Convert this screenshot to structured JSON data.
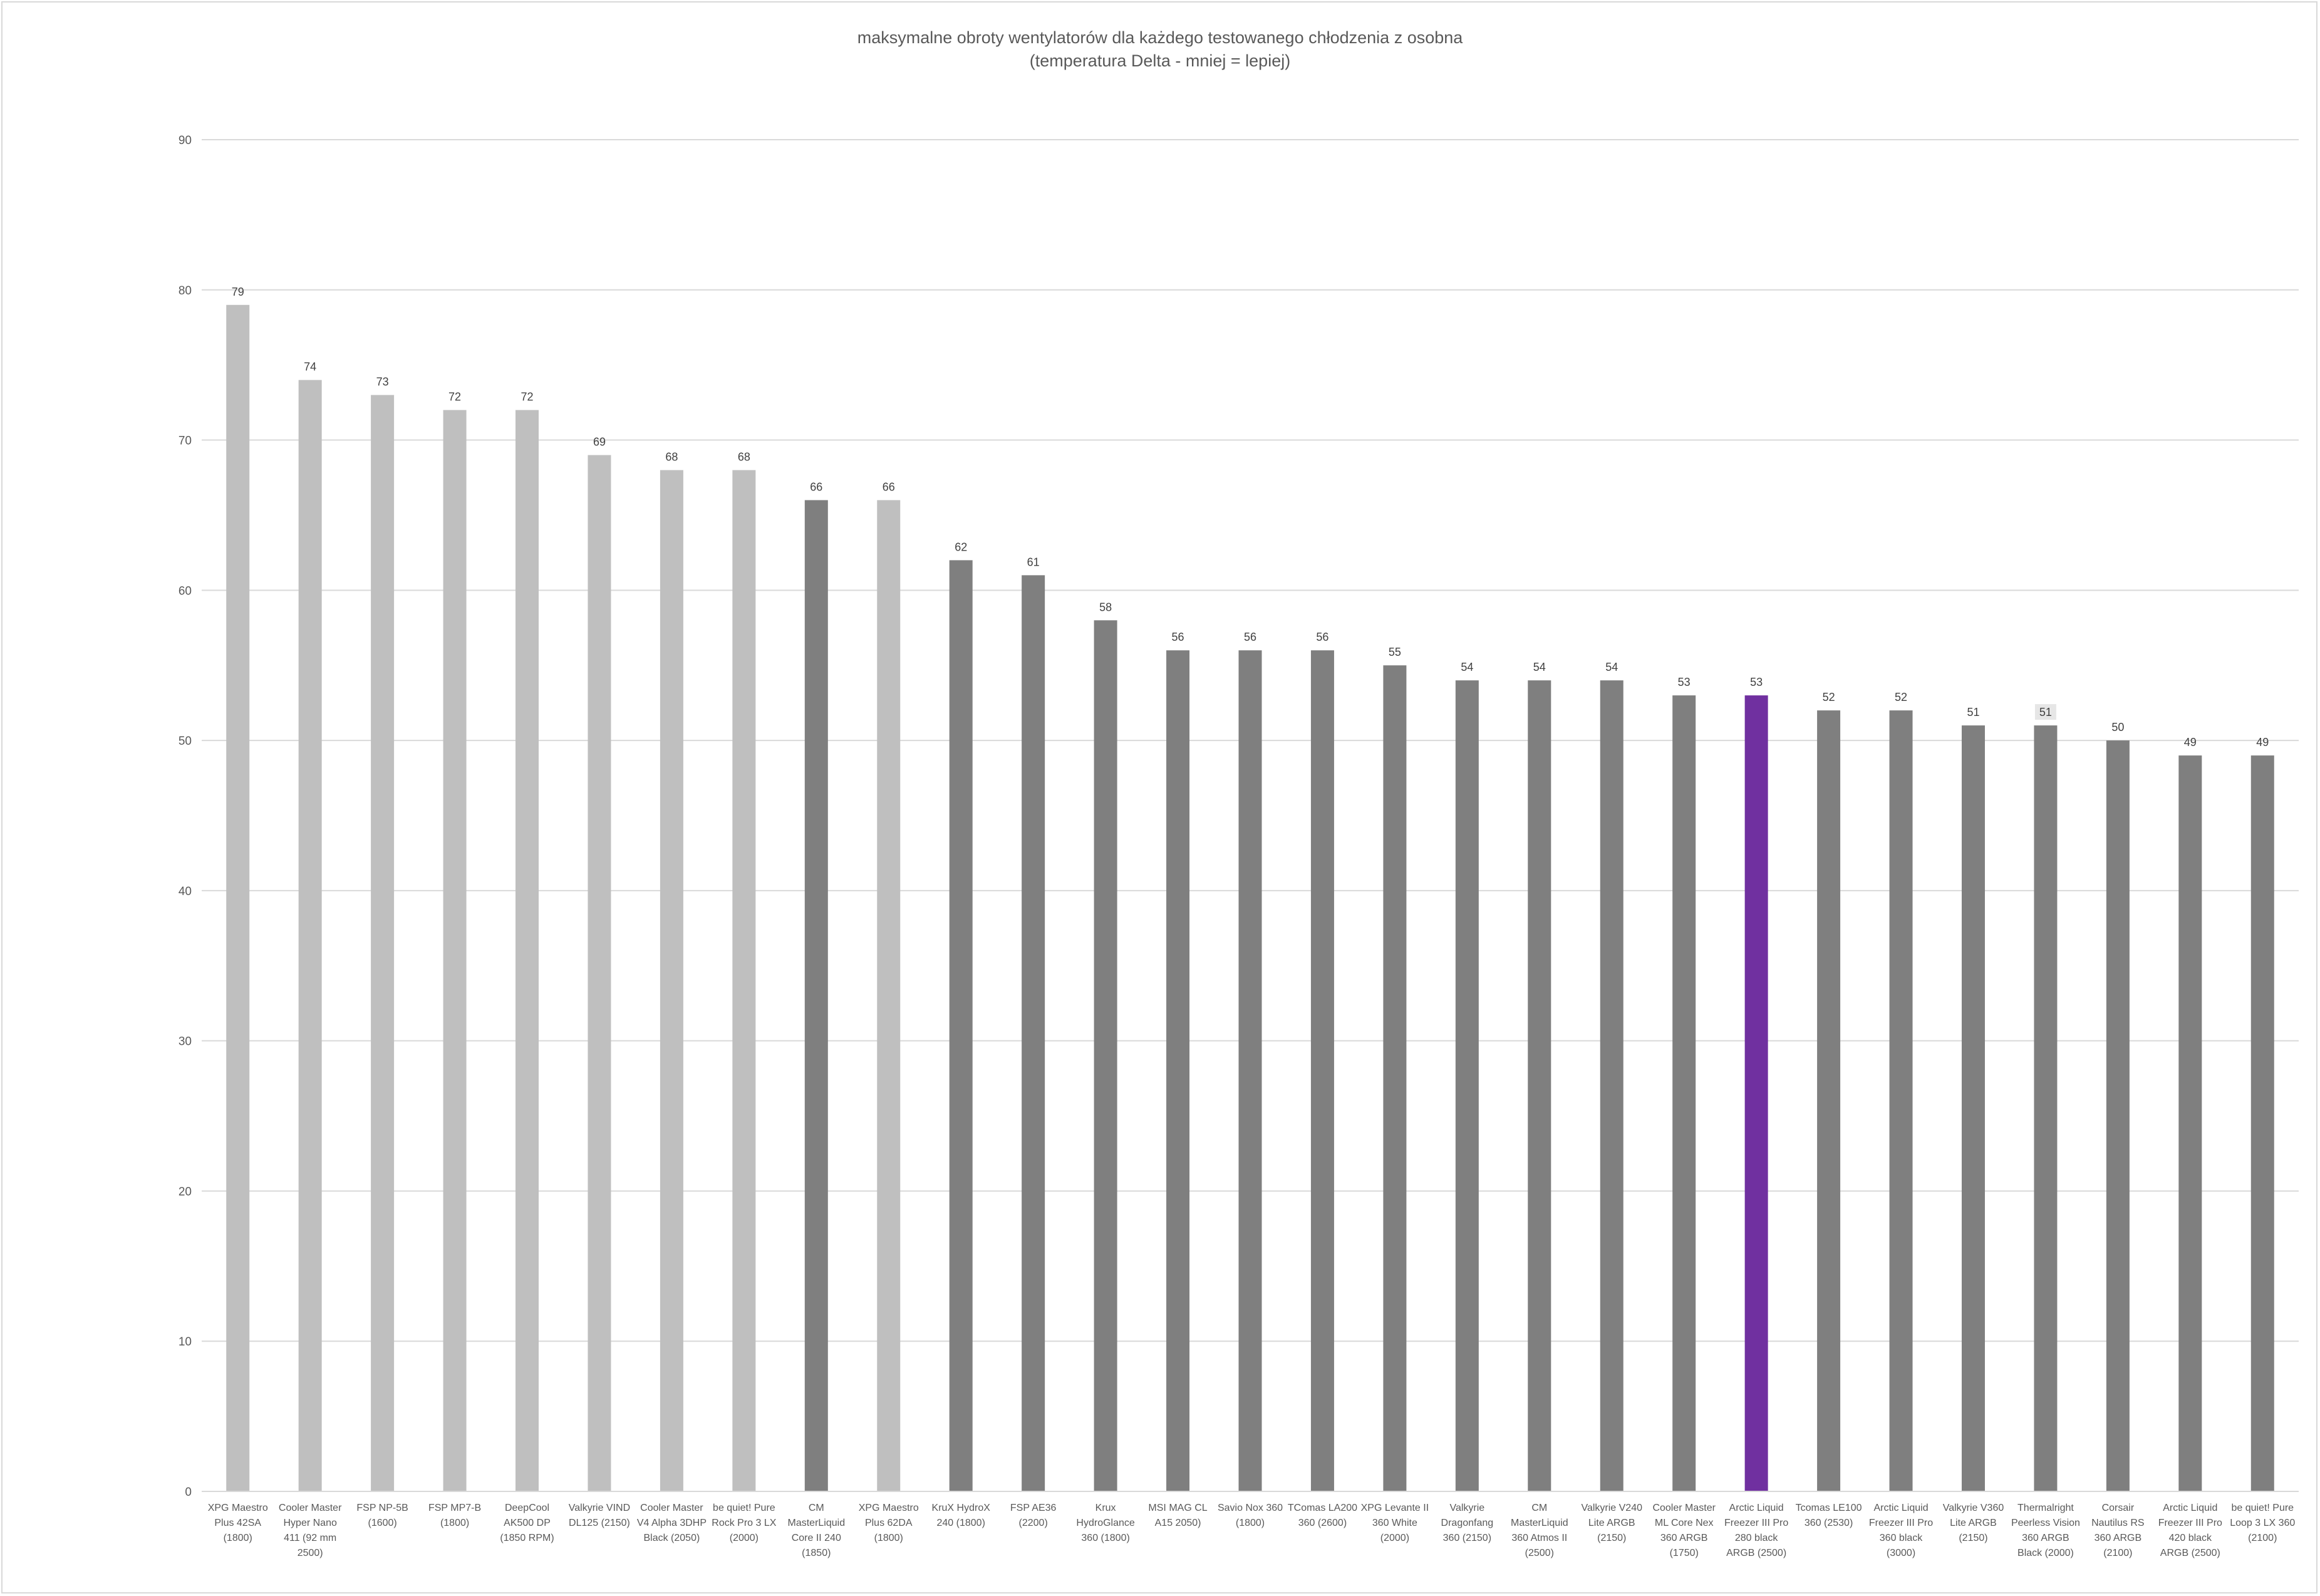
{
  "chart_data": {
    "type": "bar",
    "title": "maksymalne obroty wentylatorów dla każdego testowanego chłodzenia z osobna",
    "subtitle": "(temperatura Delta - mniej = lepiej)",
    "xlabel": "",
    "ylabel": "",
    "ylim": [
      0,
      90
    ],
    "ytick_labels": [
      "0",
      "10",
      "20",
      "30",
      "40",
      "50",
      "60",
      "70",
      "80",
      "90"
    ],
    "grid": true,
    "legend": "none",
    "categories": [
      "XPG Maestro Plus 42SA (1800)",
      "Cooler Master Hyper Nano 411 (92 mm 2500)",
      "FSP NP-5B (1600)",
      "FSP MP7-B (1800)",
      "DeepCool AK500 DP (1850 RPM)",
      "Valkyrie VIND DL125 (2150)",
      "Cooler Master V4 Alpha 3DHP Black (2050)",
      "be quiet! Pure Rock Pro 3 LX (2000)",
      "CM MasterLiquid Core II 240 (1850)",
      "XPG Maestro Plus 62DA (1800)",
      "KruX HydroX 240 (1800)",
      "FSP AE36 (2200)",
      "Krux HydroGlance 360 (1800)",
      "MSI MAG CL A15 2050)",
      "Savio Nox 360 (1800)",
      "TComas LA200 360 (2600)",
      "XPG Levante II 360 White (2000)",
      "Valkyrie Dragonfang 360 (2150)",
      "CM MasterLiquid 360 Atmos II (2500)",
      "Valkyrie V240 Lite ARGB (2150)",
      "Cooler Master ML Core Nex 360 ARGB (1750)",
      "Arctic Liquid Freezer III Pro 280 black ARGB (2500)",
      "Tcomas LE100 360 (2530)",
      "Arctic Liquid Freezer III Pro 360 black (3000)",
      "Valkyrie V360 Lite ARGB (2150)",
      "Thermalright Peerless Vision 360 ARGB Black (2000)",
      "Corsair Nautilus RS 360 ARGB (2100)",
      "Arctic Liquid Freezer III Pro 420 black ARGB (2500)",
      "be quiet! Pure Loop 3 LX 360 (2100)"
    ],
    "category_lines": [
      [
        "XPG Maestro",
        "Plus 42SA",
        "(1800)"
      ],
      [
        "Cooler Master",
        "Hyper Nano",
        "411 (92 mm",
        "2500)"
      ],
      [
        "FSP NP-5B",
        "(1600)"
      ],
      [
        "FSP MP7-B",
        "(1800)"
      ],
      [
        "DeepCool",
        "AK500 DP",
        "(1850 RPM)"
      ],
      [
        "Valkyrie VIND",
        "DL125 (2150)"
      ],
      [
        "Cooler Master",
        "V4 Alpha 3DHP",
        "Black (2050)"
      ],
      [
        "be quiet! Pure",
        "Rock Pro 3 LX",
        "(2000)"
      ],
      [
        "CM",
        "MasterLiquid",
        "Core II 240",
        "(1850)"
      ],
      [
        "XPG Maestro",
        "Plus 62DA",
        "(1800)"
      ],
      [
        "KruX HydroX",
        "240 (1800)"
      ],
      [
        "FSP AE36",
        "(2200)"
      ],
      [
        "Krux",
        "HydroGlance",
        "360 (1800)"
      ],
      [
        "MSI MAG CL",
        "A15 2050)"
      ],
      [
        "Savio Nox 360",
        "(1800)"
      ],
      [
        "TComas LA200",
        "360 (2600)"
      ],
      [
        "XPG Levante II",
        "360 White",
        "(2000)"
      ],
      [
        "Valkyrie",
        "Dragonfang",
        "360 (2150)"
      ],
      [
        "CM",
        "MasterLiquid",
        "360 Atmos II",
        "(2500)"
      ],
      [
        "Valkyrie V240",
        "Lite ARGB",
        "(2150)"
      ],
      [
        "Cooler Master",
        "ML Core Nex",
        "360 ARGB",
        "(1750)"
      ],
      [
        "Arctic Liquid",
        "Freezer III Pro",
        "280 black",
        "ARGB (2500)"
      ],
      [
        "Tcomas LE100",
        "360 (2530)"
      ],
      [
        "Arctic Liquid",
        "Freezer III Pro",
        "360 black",
        "(3000)"
      ],
      [
        "Valkyrie V360",
        "Lite ARGB",
        "(2150)"
      ],
      [
        "Thermalright",
        "Peerless Vision",
        "360 ARGB",
        "Black (2000)"
      ],
      [
        "Corsair",
        "Nautilus RS",
        "360 ARGB",
        "(2100)"
      ],
      [
        "Arctic Liquid",
        "Freezer III Pro",
        "420 black",
        "ARGB (2500)"
      ],
      [
        "be quiet! Pure",
        "Loop 3 LX 360",
        "(2100)"
      ]
    ],
    "values": [
      79,
      74,
      73,
      72,
      72,
      69,
      68,
      68,
      66,
      66,
      62,
      61,
      58,
      56,
      56,
      56,
      55,
      54,
      54,
      54,
      53,
      53,
      52,
      52,
      51,
      51,
      50,
      49,
      49
    ],
    "bar_colors": [
      "#bfbfbf",
      "#bfbfbf",
      "#bfbfbf",
      "#bfbfbf",
      "#bfbfbf",
      "#bfbfbf",
      "#bfbfbf",
      "#bfbfbf",
      "#7f7f7f",
      "#bfbfbf",
      "#7f7f7f",
      "#7f7f7f",
      "#7f7f7f",
      "#7f7f7f",
      "#7f7f7f",
      "#7f7f7f",
      "#7f7f7f",
      "#7f7f7f",
      "#7f7f7f",
      "#7f7f7f",
      "#7f7f7f",
      "#7030a0",
      "#7f7f7f",
      "#7f7f7f",
      "#7f7f7f",
      "#7f7f7f",
      "#7f7f7f",
      "#7f7f7f",
      "#7f7f7f"
    ],
    "gridline_color": "#d9d9d9",
    "axis_text_color": "#595959",
    "highlight_label_bg": "#e6e6e6"
  }
}
